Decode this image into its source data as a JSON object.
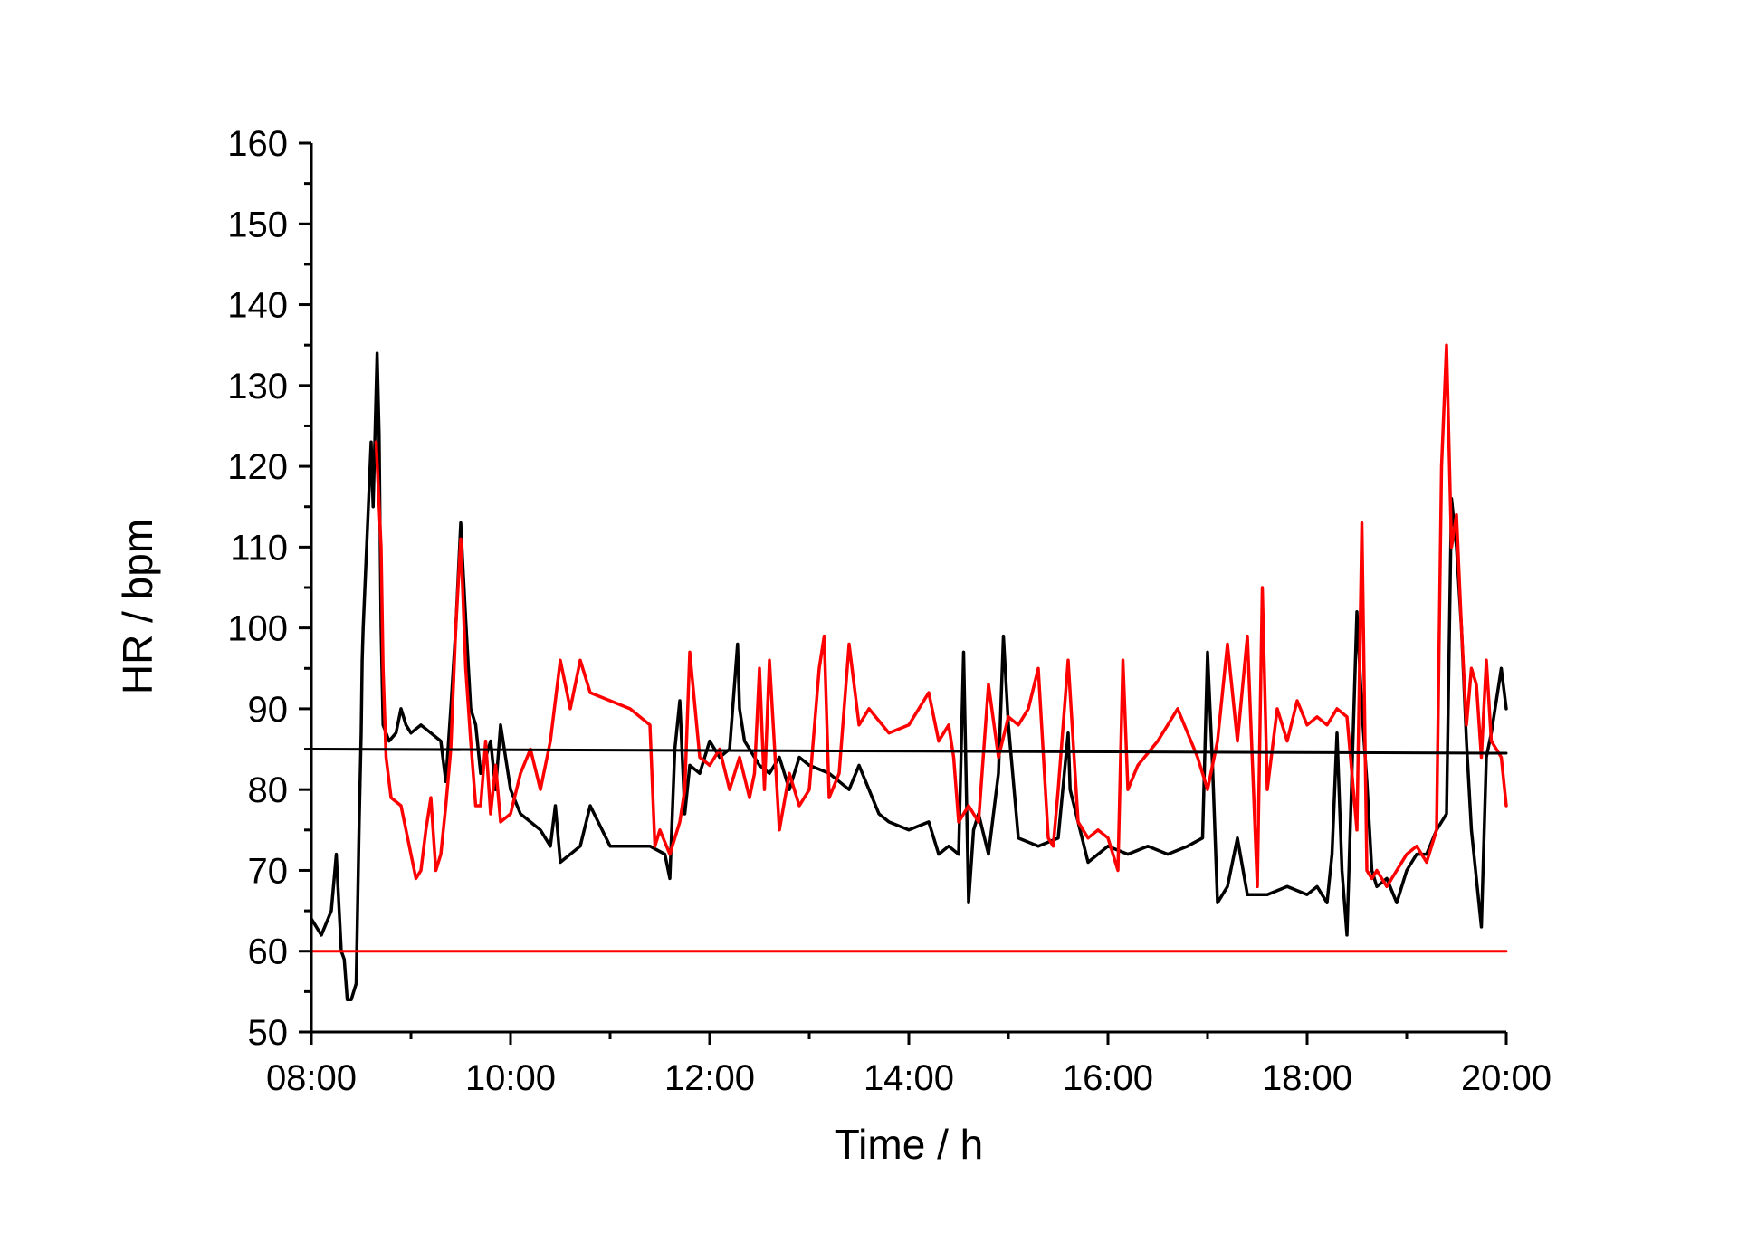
{
  "chart_data": {
    "type": "line",
    "title": "",
    "xlabel": "Time / h",
    "ylabel": "HR / bpm",
    "xlim": [
      8,
      20
    ],
    "ylim": [
      50,
      160
    ],
    "x_ticks": [
      {
        "value": 8,
        "label": "08:00"
      },
      {
        "value": 10,
        "label": "10:00"
      },
      {
        "value": 12,
        "label": "12:00"
      },
      {
        "value": 14,
        "label": "14:00"
      },
      {
        "value": 16,
        "label": "16:00"
      },
      {
        "value": 18,
        "label": "18:00"
      },
      {
        "value": 20,
        "label": "20:00"
      }
    ],
    "y_ticks": [
      {
        "value": 50,
        "label": "50"
      },
      {
        "value": 60,
        "label": "60"
      },
      {
        "value": 70,
        "label": "70"
      },
      {
        "value": 80,
        "label": "80"
      },
      {
        "value": 90,
        "label": "90"
      },
      {
        "value": 100,
        "label": "100"
      },
      {
        "value": 110,
        "label": "110"
      },
      {
        "value": 120,
        "label": "120"
      },
      {
        "value": 130,
        "label": "130"
      },
      {
        "value": 140,
        "label": "140"
      },
      {
        "value": 150,
        "label": "150"
      },
      {
        "value": 160,
        "label": "160"
      }
    ],
    "grid": false,
    "legend": "none",
    "series": [
      {
        "color": "#000000",
        "x": [
          8.0,
          8.1,
          8.2,
          8.25,
          8.3,
          8.33,
          8.36,
          8.4,
          8.45,
          8.48,
          8.5,
          8.51,
          8.52,
          8.6,
          8.62,
          8.66,
          8.68,
          8.7,
          8.72,
          8.78,
          8.85,
          8.9,
          8.95,
          9.0,
          9.1,
          9.2,
          9.3,
          9.35,
          9.4,
          9.45,
          9.5,
          9.52,
          9.55,
          9.6,
          9.65,
          9.7,
          9.8,
          9.85,
          9.9,
          10.0,
          10.1,
          10.2,
          10.3,
          10.4,
          10.45,
          10.5,
          10.6,
          10.7,
          10.8,
          11.0,
          11.2,
          11.4,
          11.55,
          11.6,
          11.65,
          11.7,
          11.75,
          11.8,
          11.9,
          12.0,
          12.1,
          12.2,
          12.28,
          12.3,
          12.35,
          12.4,
          12.5,
          12.6,
          12.7,
          12.8,
          12.9,
          13.0,
          13.2,
          13.4,
          13.5,
          13.6,
          13.7,
          13.8,
          14.0,
          14.2,
          14.3,
          14.4,
          14.5,
          14.55,
          14.6,
          14.65,
          14.7,
          14.8,
          14.9,
          14.95,
          15.0,
          15.1,
          15.3,
          15.5,
          15.6,
          15.62,
          15.7,
          15.8,
          16.0,
          16.2,
          16.4,
          16.6,
          16.8,
          16.95,
          17.0,
          17.05,
          17.1,
          17.2,
          17.3,
          17.4,
          17.6,
          17.8,
          18.0,
          18.1,
          18.2,
          18.25,
          18.3,
          18.35,
          18.4,
          18.45,
          18.5,
          18.55,
          18.6,
          18.65,
          18.7,
          18.8,
          18.9,
          19.0,
          19.1,
          19.2,
          19.3,
          19.4,
          19.45,
          19.5,
          19.55,
          19.6,
          19.65,
          19.7,
          19.75,
          19.8,
          19.85,
          19.9,
          19.95,
          20.0
        ],
        "y": [
          64,
          62,
          65,
          72,
          60,
          59,
          54,
          54,
          56,
          76,
          87,
          96,
          100,
          123,
          115,
          134,
          124,
          100,
          88,
          86,
          87,
          90,
          88,
          87,
          88,
          87,
          86,
          81,
          90,
          100,
          113,
          108,
          101,
          90,
          88,
          82,
          86,
          80,
          88,
          80,
          77,
          76,
          75,
          73,
          78,
          71,
          72,
          73,
          78,
          73,
          73,
          73,
          72,
          69,
          85,
          91,
          77,
          83,
          82,
          86,
          84,
          85,
          98,
          90,
          86,
          85,
          83,
          82,
          84,
          80,
          84,
          83,
          82,
          80,
          83,
          80,
          77,
          76,
          75,
          76,
          72,
          73,
          72,
          97,
          66,
          75,
          77,
          72,
          82,
          99,
          88,
          74,
          73,
          74,
          87,
          80,
          76,
          71,
          73,
          72,
          73,
          72,
          73,
          74,
          97,
          83,
          66,
          68,
          74,
          67,
          67,
          68,
          67,
          68,
          66,
          72,
          87,
          70,
          62,
          82,
          102,
          90,
          81,
          70,
          68,
          69,
          66,
          70,
          72,
          72,
          75,
          77,
          116,
          110,
          100,
          86,
          75,
          69,
          63,
          84,
          87,
          91,
          95,
          90
        ]
      },
      {
        "color": "#ff0000",
        "x": [
          8.65,
          8.7,
          8.72,
          8.75,
          8.8,
          8.9,
          9.0,
          9.05,
          9.1,
          9.15,
          9.2,
          9.25,
          9.3,
          9.35,
          9.4,
          9.45,
          9.5,
          9.55,
          9.6,
          9.65,
          9.7,
          9.75,
          9.8,
          9.85,
          9.9,
          10.0,
          10.1,
          10.2,
          10.3,
          10.4,
          10.5,
          10.6,
          10.7,
          10.8,
          11.0,
          11.2,
          11.4,
          11.45,
          11.5,
          11.6,
          11.7,
          11.75,
          11.8,
          11.9,
          12.0,
          12.1,
          12.2,
          12.3,
          12.4,
          12.45,
          12.5,
          12.55,
          12.6,
          12.7,
          12.8,
          12.9,
          13.0,
          13.1,
          13.15,
          13.2,
          13.3,
          13.4,
          13.5,
          13.6,
          13.8,
          14.0,
          14.2,
          14.3,
          14.4,
          14.45,
          14.5,
          14.6,
          14.7,
          14.8,
          14.9,
          15.0,
          15.1,
          15.2,
          15.3,
          15.4,
          15.45,
          15.5,
          15.6,
          15.7,
          15.8,
          15.9,
          16.0,
          16.1,
          16.15,
          16.2,
          16.3,
          16.5,
          16.7,
          16.9,
          17.0,
          17.1,
          17.2,
          17.3,
          17.4,
          17.5,
          17.55,
          17.6,
          17.7,
          17.8,
          17.9,
          18.0,
          18.1,
          18.2,
          18.3,
          18.4,
          18.5,
          18.55,
          18.6,
          18.65,
          18.7,
          18.8,
          18.9,
          19.0,
          19.1,
          19.2,
          19.3,
          19.35,
          19.4,
          19.45,
          19.5,
          19.55,
          19.6,
          19.65,
          19.7,
          19.75,
          19.8,
          19.85,
          19.9,
          19.95,
          20.0
        ],
        "y": [
          123,
          110,
          95,
          84,
          79,
          78,
          72,
          69,
          70,
          75,
          79,
          70,
          72,
          78,
          85,
          100,
          111,
          95,
          86,
          78,
          78,
          86,
          77,
          83,
          76,
          77,
          82,
          85,
          80,
          86,
          96,
          90,
          96,
          92,
          91,
          90,
          88,
          73,
          75,
          72,
          76,
          80,
          97,
          84,
          83,
          85,
          80,
          84,
          79,
          82,
          95,
          80,
          96,
          75,
          82,
          78,
          80,
          95,
          99,
          79,
          82,
          98,
          88,
          90,
          87,
          88,
          92,
          86,
          88,
          84,
          76,
          78,
          76,
          93,
          84,
          89,
          88,
          90,
          95,
          74,
          73,
          80,
          96,
          76,
          74,
          75,
          74,
          70,
          96,
          80,
          83,
          86,
          90,
          84,
          80,
          86,
          98,
          86,
          99,
          68,
          105,
          80,
          90,
          86,
          91,
          88,
          89,
          88,
          90,
          89,
          75,
          113,
          70,
          69,
          70,
          68,
          70,
          72,
          73,
          71,
          75,
          120,
          135,
          110,
          114,
          100,
          88,
          95,
          93,
          84,
          96,
          86,
          85,
          84,
          78
        ]
      },
      {
        "color": "#000000",
        "x": [
          8.0,
          20.0
        ],
        "y": [
          85,
          84.5
        ]
      },
      {
        "color": "#ff0000",
        "x": [
          8.0,
          20.0
        ],
        "y": [
          60,
          60
        ]
      }
    ]
  }
}
